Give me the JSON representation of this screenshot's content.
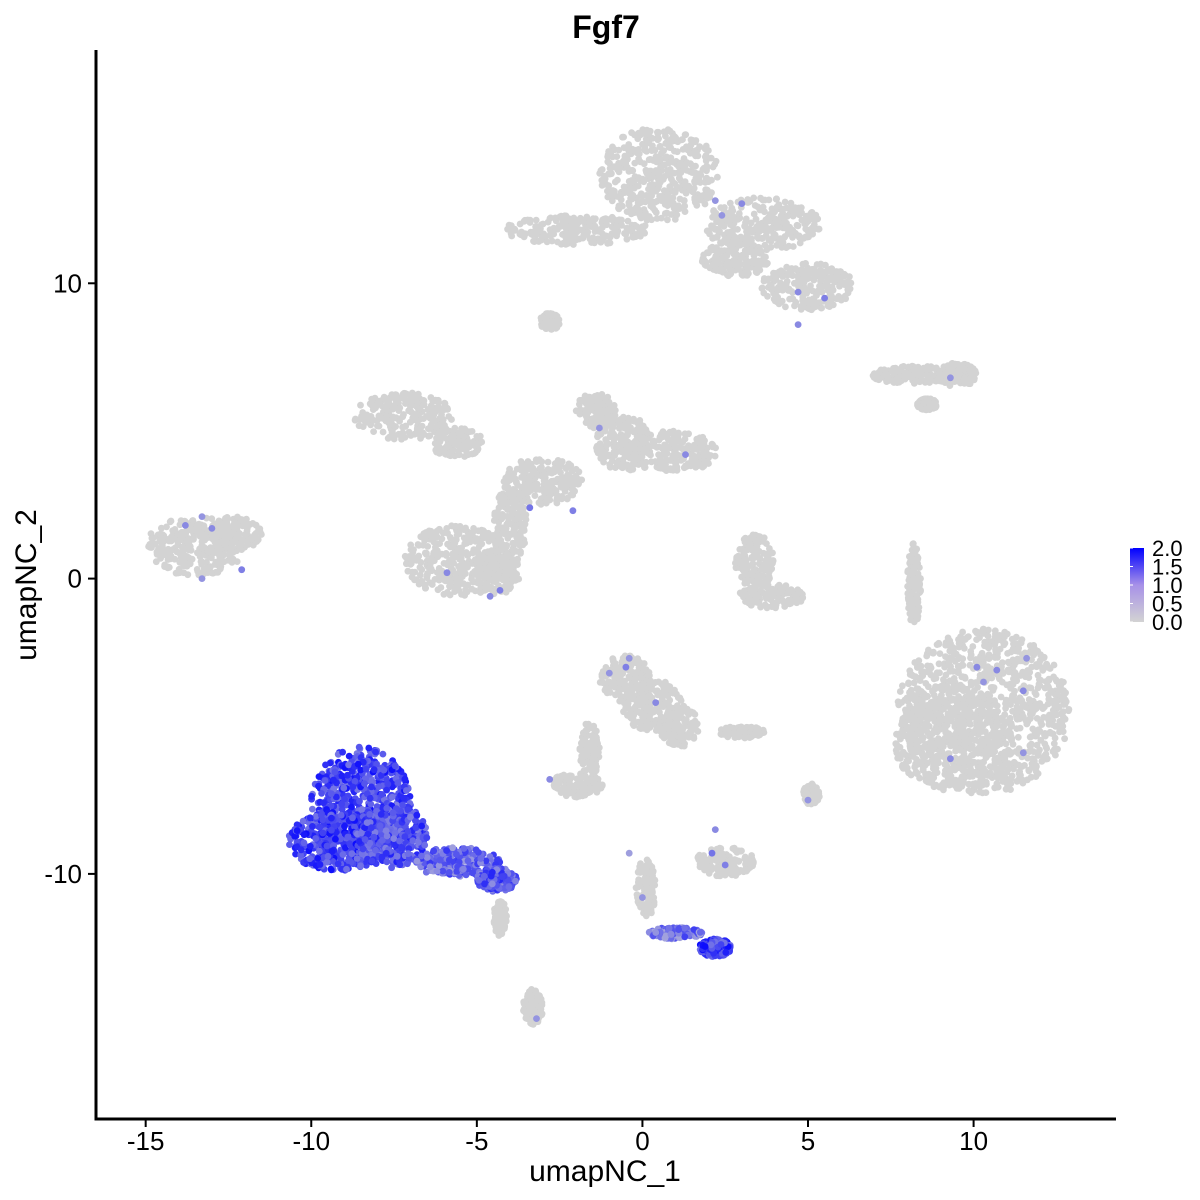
{
  "chart_data": {
    "type": "scatter",
    "title": "Fgf7",
    "xlabel": "umapNC_1",
    "ylabel": "umapNC_2",
    "xlim": [
      -16.5,
      14.3
    ],
    "ylim": [
      -18.3,
      17.9
    ],
    "x_ticks": [
      -15,
      -10,
      -5,
      0,
      5,
      10
    ],
    "y_ticks": [
      -10,
      0,
      10
    ],
    "x_tick_labels": [
      "-15",
      "-10",
      "-5",
      "0",
      "5",
      "10"
    ],
    "y_tick_labels": [
      "-10",
      "0",
      "10"
    ],
    "grid": false,
    "legend": {
      "position": "right",
      "labels": [
        "2.0",
        "1.5",
        "1.0",
        "0.5",
        "0.0"
      ],
      "values": [
        2.0,
        1.5,
        1.0,
        0.5,
        0.0
      ],
      "colors": {
        "low": "#d3d3d3",
        "high": "#0000ff"
      }
    },
    "background_clusters": [
      {
        "cx": 0.5,
        "cy": 13.7,
        "rx": 1.8,
        "ry": 1.6
      },
      {
        "cx": 3.6,
        "cy": 12.0,
        "rx": 1.8,
        "ry": 0.9
      },
      {
        "cx": -2.0,
        "cy": 11.8,
        "rx": 2.2,
        "ry": 0.5
      },
      {
        "cx": 5.0,
        "cy": 9.9,
        "rx": 1.4,
        "ry": 0.8
      },
      {
        "cx": 2.8,
        "cy": 10.8,
        "rx": 1.0,
        "ry": 0.6
      },
      {
        "cx": -2.8,
        "cy": 8.7,
        "rx": 0.3,
        "ry": 0.3
      },
      {
        "cx": 8.2,
        "cy": 6.9,
        "rx": 1.3,
        "ry": 0.3
      },
      {
        "cx": 9.5,
        "cy": 6.9,
        "rx": 0.6,
        "ry": 0.4
      },
      {
        "cx": 8.6,
        "cy": 5.9,
        "rx": 0.3,
        "ry": 0.2
      },
      {
        "cx": -7.2,
        "cy": 5.5,
        "rx": 1.5,
        "ry": 0.8
      },
      {
        "cx": -5.6,
        "cy": 4.6,
        "rx": 0.8,
        "ry": 0.5
      },
      {
        "cx": -1.4,
        "cy": 5.7,
        "rx": 0.6,
        "ry": 0.6
      },
      {
        "cx": 0.9,
        "cy": 4.3,
        "rx": 1.4,
        "ry": 0.7
      },
      {
        "cx": -0.6,
        "cy": 4.6,
        "rx": 0.8,
        "ry": 1.0
      },
      {
        "cx": -3.0,
        "cy": 3.3,
        "rx": 1.2,
        "ry": 0.8
      },
      {
        "cx": -4.0,
        "cy": 1.8,
        "rx": 0.5,
        "ry": 1.3
      },
      {
        "cx": -5.6,
        "cy": 0.6,
        "rx": 1.6,
        "ry": 1.2
      },
      {
        "cx": -4.4,
        "cy": 0.2,
        "rx": 0.7,
        "ry": 0.8
      },
      {
        "cx": -13.5,
        "cy": 1.1,
        "rx": 1.5,
        "ry": 1.0
      },
      {
        "cx": -12.3,
        "cy": 1.5,
        "rx": 0.8,
        "ry": 0.6
      },
      {
        "cx": 3.4,
        "cy": 0.6,
        "rx": 0.6,
        "ry": 0.9
      },
      {
        "cx": 3.9,
        "cy": -0.6,
        "rx": 1.0,
        "ry": 0.4
      },
      {
        "cx": 8.2,
        "cy": -0.2,
        "rx": 0.2,
        "ry": 1.4
      },
      {
        "cx": 10.3,
        "cy": -4.5,
        "rx": 2.6,
        "ry": 2.8
      },
      {
        "cx": 9.4,
        "cy": -5.6,
        "rx": 1.8,
        "ry": 1.6
      },
      {
        "cx": -0.5,
        "cy": -3.4,
        "rx": 0.8,
        "ry": 0.8
      },
      {
        "cx": 0.3,
        "cy": -4.3,
        "rx": 0.9,
        "ry": 0.9
      },
      {
        "cx": 1.1,
        "cy": -5.0,
        "rx": 0.6,
        "ry": 0.7
      },
      {
        "cx": -1.6,
        "cy": -5.8,
        "rx": 0.3,
        "ry": 1.0
      },
      {
        "cx": -2.0,
        "cy": -7.0,
        "rx": 0.8,
        "ry": 0.4
      },
      {
        "cx": 3.0,
        "cy": -5.2,
        "rx": 0.7,
        "ry": 0.2
      },
      {
        "cx": 2.5,
        "cy": -9.6,
        "rx": 0.9,
        "ry": 0.5
      },
      {
        "cx": 5.1,
        "cy": -7.3,
        "rx": 0.25,
        "ry": 0.35
      },
      {
        "cx": 0.1,
        "cy": -10.5,
        "rx": 0.3,
        "ry": 1.0
      },
      {
        "cx": -3.3,
        "cy": -14.5,
        "rx": 0.3,
        "ry": 0.6
      },
      {
        "cx": -4.3,
        "cy": -11.5,
        "rx": 0.2,
        "ry": 0.6
      }
    ],
    "expressing_clusters": [
      {
        "cx": -8.5,
        "cy": -7.6,
        "rx": 1.5,
        "ry": 1.9,
        "level": 1.35
      },
      {
        "cx": -9.2,
        "cy": -8.9,
        "rx": 1.5,
        "ry": 1.0,
        "level": 1.4
      },
      {
        "cx": -7.6,
        "cy": -8.7,
        "rx": 1.1,
        "ry": 1.1,
        "level": 1.25
      },
      {
        "cx": -5.6,
        "cy": -9.6,
        "rx": 1.3,
        "ry": 0.5,
        "level": 1.0
      },
      {
        "cx": -4.4,
        "cy": -10.2,
        "rx": 0.6,
        "ry": 0.4,
        "level": 1.15
      },
      {
        "cx": 2.2,
        "cy": -12.5,
        "rx": 0.5,
        "ry": 0.3,
        "level": 1.4
      },
      {
        "cx": 1.0,
        "cy": -12.0,
        "rx": 0.8,
        "ry": 0.2,
        "level": 0.9
      }
    ],
    "sparse_expressing_points": [
      {
        "x": 2.2,
        "y": 12.8,
        "v": 0.6
      },
      {
        "x": 3.0,
        "y": 12.7,
        "v": 0.7
      },
      {
        "x": 2.4,
        "y": 12.3,
        "v": 0.6
      },
      {
        "x": 4.7,
        "y": 9.7,
        "v": 0.7
      },
      {
        "x": 5.5,
        "y": 9.5,
        "v": 0.8
      },
      {
        "x": 4.7,
        "y": 8.6,
        "v": 0.7
      },
      {
        "x": 9.3,
        "y": 6.8,
        "v": 0.6
      },
      {
        "x": -1.3,
        "y": 5.1,
        "v": 0.6
      },
      {
        "x": 1.3,
        "y": 4.2,
        "v": 0.7
      },
      {
        "x": -3.4,
        "y": 2.4,
        "v": 0.9
      },
      {
        "x": -2.1,
        "y": 2.3,
        "v": 0.8
      },
      {
        "x": -13.8,
        "y": 1.8,
        "v": 0.7
      },
      {
        "x": -13.0,
        "y": 1.7,
        "v": 0.7
      },
      {
        "x": -13.3,
        "y": 2.1,
        "v": 0.6
      },
      {
        "x": -12.1,
        "y": 0.3,
        "v": 0.8
      },
      {
        "x": -13.3,
        "y": 0.0,
        "v": 0.6
      },
      {
        "x": -5.9,
        "y": 0.2,
        "v": 0.7
      },
      {
        "x": -4.3,
        "y": -0.4,
        "v": 0.8
      },
      {
        "x": -4.6,
        "y": -0.6,
        "v": 0.7
      },
      {
        "x": 10.1,
        "y": -3.0,
        "v": 0.7
      },
      {
        "x": 10.7,
        "y": -3.1,
        "v": 0.7
      },
      {
        "x": 11.6,
        "y": -2.7,
        "v": 0.6
      },
      {
        "x": 11.5,
        "y": -3.8,
        "v": 0.7
      },
      {
        "x": 10.3,
        "y": -3.5,
        "v": 0.6
      },
      {
        "x": 9.3,
        "y": -6.1,
        "v": 0.7
      },
      {
        "x": 11.5,
        "y": -5.9,
        "v": 0.6
      },
      {
        "x": -0.4,
        "y": -2.7,
        "v": 0.6
      },
      {
        "x": -0.5,
        "y": -3.0,
        "v": 0.8
      },
      {
        "x": -1.0,
        "y": -3.2,
        "v": 0.6
      },
      {
        "x": 0.4,
        "y": -4.2,
        "v": 0.7
      },
      {
        "x": -2.8,
        "y": -6.8,
        "v": 0.7
      },
      {
        "x": 2.1,
        "y": -9.3,
        "v": 0.9
      },
      {
        "x": 2.5,
        "y": -9.7,
        "v": 0.8
      },
      {
        "x": 2.2,
        "y": -8.5,
        "v": 0.7
      },
      {
        "x": 5.0,
        "y": -7.5,
        "v": 0.6
      },
      {
        "x": -3.2,
        "y": -14.9,
        "v": 0.6
      },
      {
        "x": -0.4,
        "y": -9.3,
        "v": 0.5
      },
      {
        "x": 0.0,
        "y": -10.8,
        "v": 0.6
      }
    ]
  }
}
